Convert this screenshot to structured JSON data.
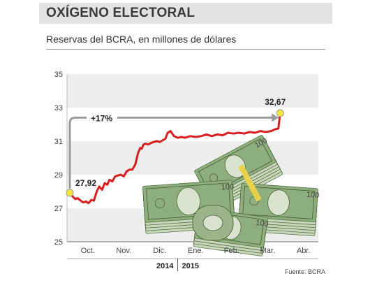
{
  "header": {
    "title": "OXÍGENO ELECTORAL",
    "subtitle": "Reservas del BCRA, en millones de dólares"
  },
  "source": "Fuente: BCRA",
  "colors": {
    "line": "#d71f1f",
    "endpoint": "#f3e83a",
    "arrow": "#9a9a9a",
    "band": "#ededed"
  },
  "illustration": "stacks-of-dollar-bills",
  "chart_data": {
    "type": "line",
    "title": "Reservas del BCRA, en millones de dólares",
    "xlabel": "",
    "ylabel": "",
    "ylim": [
      25,
      35
    ],
    "yticks": [
      "25",
      "27",
      "29",
      "31",
      "33",
      "35"
    ],
    "xticks": [
      "Oct.",
      "Nov.",
      "Dic.",
      "Ene.",
      "Feb.",
      "Mar.",
      "Abr."
    ],
    "years": [
      "2014",
      "2015"
    ],
    "grid": "horizontal bands",
    "series": [
      {
        "name": "",
        "x": [
          0,
          0.08,
          0.15,
          0.22,
          0.3,
          0.37,
          0.45,
          0.52,
          0.6,
          0.67,
          0.75,
          0.82,
          0.9,
          0.97,
          1.04,
          1.1,
          1.18,
          1.26,
          1.33,
          1.42,
          1.5,
          1.58,
          1.66,
          1.74,
          1.82,
          1.9,
          1.96,
          2.0,
          2.05,
          2.1,
          2.18,
          2.26,
          2.34,
          2.42,
          2.5,
          2.58,
          2.66,
          2.72,
          2.8,
          2.9,
          3.0,
          3.1,
          3.2,
          3.35,
          3.5,
          3.65,
          3.8,
          3.95,
          4.1,
          4.25,
          4.4,
          4.55,
          4.7,
          4.85,
          5.0,
          5.15,
          5.3,
          5.45,
          5.6,
          5.7,
          5.8,
          5.85
        ],
        "values": [
          27.92,
          27.7,
          27.55,
          27.6,
          27.45,
          27.35,
          27.4,
          27.3,
          27.5,
          27.45,
          28.0,
          28.3,
          28.1,
          28.5,
          28.4,
          28.7,
          28.6,
          28.9,
          28.95,
          29.0,
          28.9,
          29.2,
          29.3,
          29.3,
          29.6,
          30.3,
          30.6,
          30.55,
          30.8,
          30.85,
          30.8,
          30.9,
          30.95,
          31.0,
          30.95,
          31.05,
          31.15,
          31.5,
          31.6,
          31.3,
          31.2,
          31.25,
          31.2,
          31.3,
          31.25,
          31.3,
          31.4,
          31.3,
          31.4,
          31.35,
          31.5,
          31.45,
          31.5,
          31.45,
          31.55,
          31.5,
          31.6,
          31.55,
          31.6,
          31.7,
          31.75,
          32.67
        ]
      }
    ],
    "annotations": {
      "start_label": "27,92",
      "end_label": "32,67",
      "change_label": "+17%"
    }
  }
}
